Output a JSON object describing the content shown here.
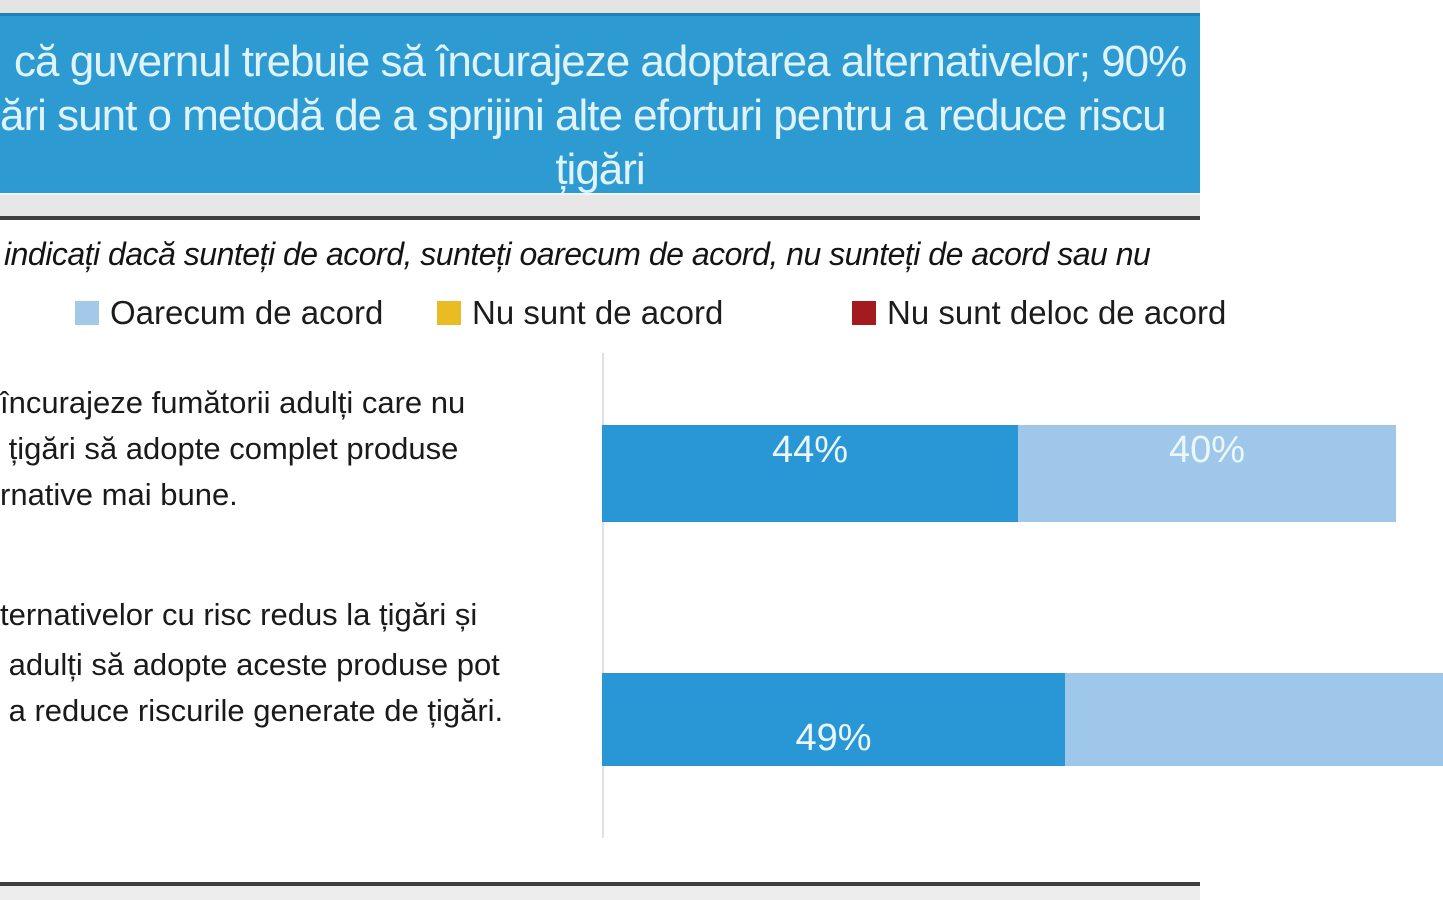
{
  "banner": {
    "line1": "că guvernul trebuie să încurajeze adoptarea alternativelor; 90%",
    "line2": "ări sunt o metodă de a sprijini alte eforturi pentru a reduce riscu",
    "line3": "țigări",
    "bg_color": "#2E9AD2",
    "text_color": "#DFF3FB"
  },
  "subtitle": {
    "text": "indicați dacă sunteți de acord, sunteți oarecum de acord, nu sunteți de acord sau nu"
  },
  "legend": {
    "items": [
      {
        "label": "Oarecum de acord",
        "color": "#A3C9E9"
      },
      {
        "label": "Nu sunt de acord",
        "color": "#EBBB23"
      },
      {
        "label": "Nu sunt deloc de acord",
        "color": "#A21C1F"
      }
    ]
  },
  "chart_data": {
    "type": "bar",
    "orientation": "horizontal-stacked",
    "title": "că guvernul trebuie să încurajeze adoptarea alternativelor; 90% … ări sunt o metodă de a sprijini alte eforturi pentru a reduce riscurile … țigări",
    "x_axis": {
      "min": 0,
      "max": 100,
      "unit": "%",
      "ticks_visible": false,
      "grid": false
    },
    "legend_position": "top",
    "categories": [
      {
        "lines": [
          "încurajeze fumătorii adulți care nu",
          " țigări să adopte complet produse",
          "rnative mai bune."
        ]
      },
      {
        "lines": [
          "ternativelor cu risc redus la țigări și",
          " adulți să adopte aceste produse pot",
          " a reduce riscurile generate de țigări."
        ]
      }
    ],
    "bars": [
      {
        "segments": [
          {
            "value": 44,
            "label": "44%",
            "color": "#2997D5"
          },
          {
            "value": 40,
            "label": "40%",
            "color": "#9FC7EA"
          }
        ]
      },
      {
        "segments": [
          {
            "value": 49,
            "label": "49%",
            "color": "#2997D5"
          },
          {
            "value": 40,
            "label": "",
            "color": "#9FC7EA"
          }
        ]
      }
    ],
    "value_label_color": "#EAF7FD"
  },
  "colors": {
    "bar_dark_blue": "#2997D5",
    "bar_light_blue": "#9FC7EA",
    "legend_yellow": "#EBBB23",
    "legend_dark_red": "#A21C1F",
    "banner_blue": "#2E9AD2",
    "rule_dark_gray": "#3E3E3E"
  }
}
